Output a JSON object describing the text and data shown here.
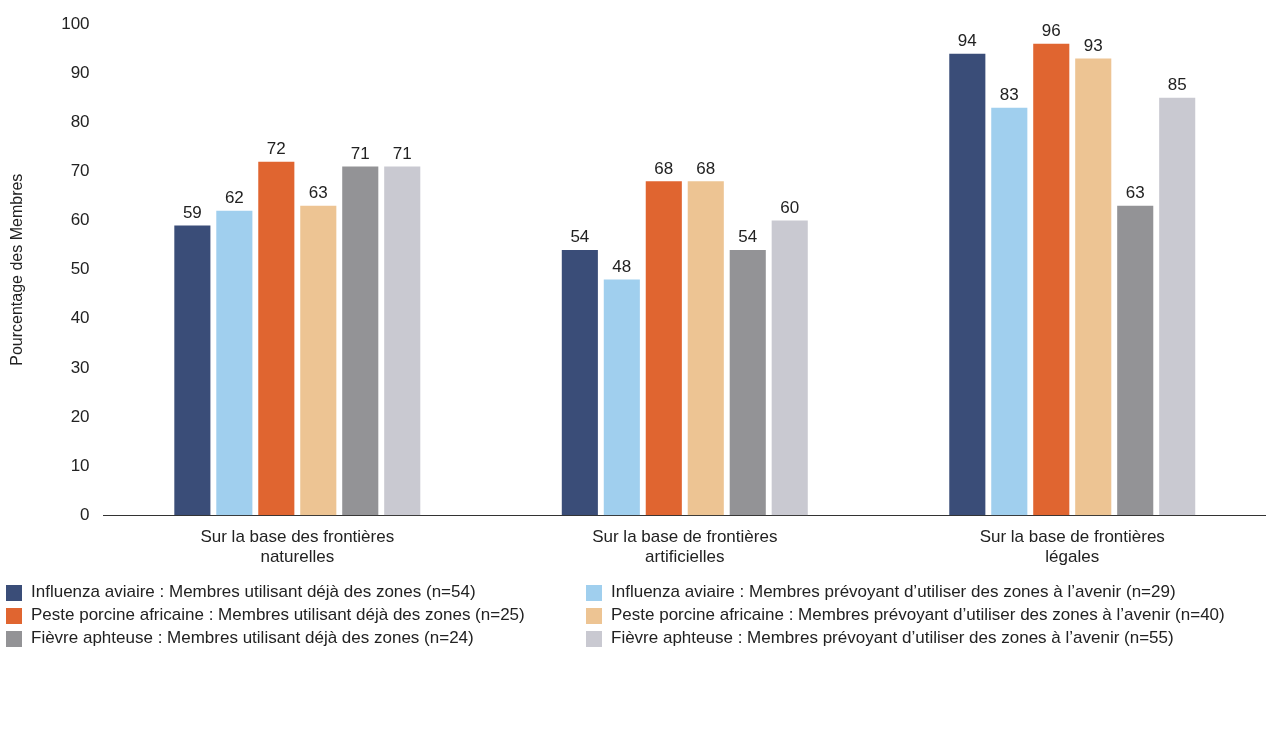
{
  "chart_data": {
    "type": "bar",
    "ylabel": "Pourcentage des Membres",
    "categories": [
      "Sur la base des frontières naturelles",
      "Sur la base de frontières artificielles",
      "Sur la base de frontières légales"
    ],
    "series": [
      {
        "name": "Influenza aviaire : Membres utilisant déjà des zones (n=54)",
        "color": "#3a4d78",
        "values": [
          59,
          54,
          94
        ]
      },
      {
        "name": "Influenza aviaire : Membres prévoyant d’utiliser des zones à l’avenir (n=29)",
        "color": "#a0cfee",
        "values": [
          62,
          48,
          83
        ]
      },
      {
        "name": "Peste porcine africaine : Membres utilisant déjà des zones (n=25)",
        "color": "#e06530",
        "values": [
          72,
          68,
          96
        ]
      },
      {
        "name": "Peste porcine africaine : Membres prévoyant d’utiliser des zones à l’avenir (n=40)",
        "color": "#edc493",
        "values": [
          63,
          68,
          93
        ]
      },
      {
        "name": "Fièvre aphteuse : Membres utilisant déjà des zones (n=24)",
        "color": "#939396",
        "values": [
          71,
          54,
          63
        ]
      },
      {
        "name": "Fièvre aphteuse : Membres prévoyant d’utiliser des zones à l’avenir (n=55)",
        "color": "#c9c9d1",
        "values": [
          71,
          60,
          85
        ]
      }
    ],
    "ylim": [
      0,
      100
    ],
    "yticks": [
      0,
      10,
      20,
      30,
      40,
      50,
      60,
      70,
      80,
      90,
      100
    ],
    "grid": false,
    "legend": "bottom",
    "data_labels": true
  }
}
